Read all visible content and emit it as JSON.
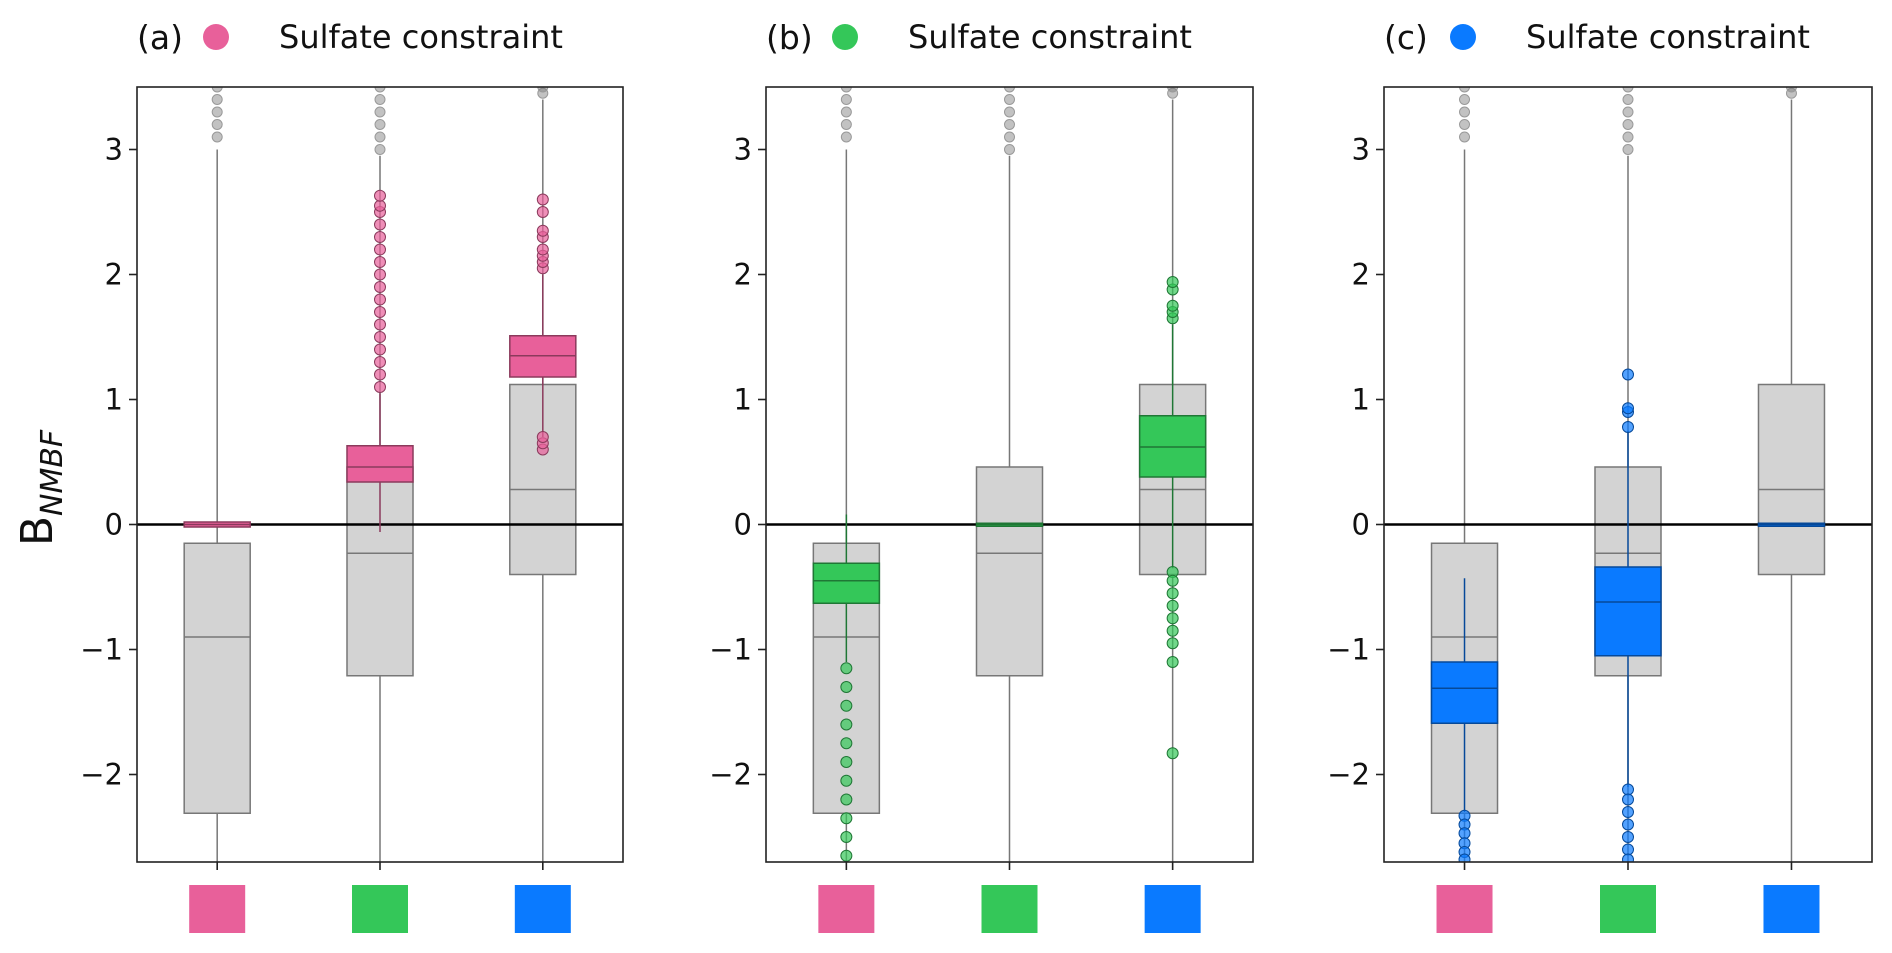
{
  "figure": {
    "ylabel_main": "B",
    "ylabel_sub": "NMBF"
  },
  "colors": {
    "pink": "#e8609a",
    "green": "#34c759",
    "blue": "#0a7aff",
    "gray_box": "#d3d3d3",
    "gray_line": "#777777",
    "zero_line": "#000000"
  },
  "chart_data": [
    {
      "type": "box",
      "panel_label": "(a)",
      "legend_text": "Sulfate constraint",
      "highlight": "pink",
      "ylim": [
        -2.7,
        3.5
      ],
      "yticks": [
        -2,
        -1,
        0,
        1,
        2,
        3
      ],
      "yticklabels": [
        "−2",
        "−1",
        "0",
        "1",
        "2",
        "3"
      ],
      "categories": [
        "pink",
        "green",
        "blue"
      ],
      "reference_boxes": [
        {
          "q1": -2.31,
          "median": -0.9,
          "q3": -0.15,
          "whisker_low": -2.7,
          "whisker_high": 3.0,
          "fliers_high": [
            3.1,
            3.2,
            3.3,
            3.4,
            3.5
          ]
        },
        {
          "q1": -1.21,
          "median": -0.23,
          "q3": 0.46,
          "whisker_low": -2.7,
          "whisker_high": 2.95,
          "fliers_high": [
            3.0,
            3.1,
            3.2,
            3.3,
            3.4,
            3.5
          ]
        },
        {
          "q1": -0.4,
          "median": 0.28,
          "q3": 1.12,
          "whisker_low": -2.7,
          "whisker_high": 3.4,
          "fliers_high": [
            3.45,
            3.5
          ]
        }
      ],
      "highlight_boxes": [
        {
          "q1": -0.02,
          "median": 0.0,
          "q3": 0.02,
          "whisker_low": -0.02,
          "whisker_high": 0.02,
          "fliers": []
        },
        {
          "q1": 0.34,
          "median": 0.46,
          "q3": 0.63,
          "whisker_low": -0.06,
          "whisker_high": 1.05,
          "fliers": [
            1.1,
            1.2,
            1.3,
            1.4,
            1.5,
            1.6,
            1.7,
            1.8,
            1.9,
            2.0,
            2.1,
            2.2,
            2.3,
            2.4,
            2.5,
            2.55,
            2.63
          ]
        },
        {
          "q1": 1.18,
          "median": 1.35,
          "q3": 1.51,
          "whisker_low": 0.7,
          "whisker_high": 2.0,
          "fliers": [
            0.6,
            0.65,
            0.7,
            2.05,
            2.1,
            2.15,
            2.2,
            2.3,
            2.35,
            2.5,
            2.6
          ]
        }
      ]
    },
    {
      "type": "box",
      "panel_label": "(b)",
      "legend_text": "Sulfate constraint",
      "highlight": "green",
      "ylim": [
        -2.7,
        3.5
      ],
      "yticks": [
        -2,
        -1,
        0,
        1,
        2,
        3
      ],
      "yticklabels": [
        "−2",
        "−1",
        "0",
        "1",
        "2",
        "3"
      ],
      "categories": [
        "pink",
        "green",
        "blue"
      ],
      "reference_boxes": [
        {
          "q1": -2.31,
          "median": -0.9,
          "q3": -0.15,
          "whisker_low": -2.7,
          "whisker_high": 3.0,
          "fliers_high": [
            3.1,
            3.2,
            3.3,
            3.4,
            3.5
          ]
        },
        {
          "q1": -1.21,
          "median": -0.23,
          "q3": 0.46,
          "whisker_low": -2.7,
          "whisker_high": 2.95,
          "fliers_high": [
            3.0,
            3.1,
            3.2,
            3.3,
            3.4,
            3.5
          ]
        },
        {
          "q1": -0.4,
          "median": 0.28,
          "q3": 1.12,
          "whisker_low": -2.7,
          "whisker_high": 3.4,
          "fliers_high": [
            3.45,
            3.5
          ]
        }
      ],
      "highlight_boxes": [
        {
          "q1": -0.63,
          "median": -0.45,
          "q3": -0.31,
          "whisker_low": -1.1,
          "whisker_high": 0.08,
          "fliers": [
            -1.15,
            -1.3,
            -1.45,
            -1.6,
            -1.75,
            -1.9,
            -2.05,
            -2.2,
            -2.35,
            -2.5,
            -2.65
          ]
        },
        {
          "q1": -0.01,
          "median": 0.0,
          "q3": 0.01,
          "whisker_low": -0.01,
          "whisker_high": 0.01,
          "fliers": []
        },
        {
          "q1": 0.38,
          "median": 0.62,
          "q3": 0.87,
          "whisker_low": -0.35,
          "whisker_high": 1.6,
          "fliers": [
            -0.38,
            -0.45,
            -0.55,
            -0.65,
            -0.75,
            -0.85,
            -0.95,
            -1.1,
            -1.83,
            1.65,
            1.7,
            1.75,
            1.88,
            1.94
          ]
        }
      ]
    },
    {
      "type": "box",
      "panel_label": "(c)",
      "legend_text": "Sulfate constraint",
      "highlight": "blue",
      "ylim": [
        -2.7,
        3.5
      ],
      "yticks": [
        -2,
        -1,
        0,
        1,
        2,
        3
      ],
      "yticklabels": [
        "−2",
        "−1",
        "0",
        "1",
        "2",
        "3"
      ],
      "categories": [
        "pink",
        "green",
        "blue"
      ],
      "reference_boxes": [
        {
          "q1": -2.31,
          "median": -0.9,
          "q3": -0.15,
          "whisker_low": -2.7,
          "whisker_high": 3.0,
          "fliers_high": [
            3.1,
            3.2,
            3.3,
            3.4,
            3.5
          ]
        },
        {
          "q1": -1.21,
          "median": -0.23,
          "q3": 0.46,
          "whisker_low": -2.7,
          "whisker_high": 2.95,
          "fliers_high": [
            3.0,
            3.1,
            3.2,
            3.3,
            3.4,
            3.5
          ]
        },
        {
          "q1": -0.4,
          "median": 0.28,
          "q3": 1.12,
          "whisker_low": -2.7,
          "whisker_high": 3.4,
          "fliers_high": [
            3.45,
            3.5
          ]
        }
      ],
      "highlight_boxes": [
        {
          "q1": -1.59,
          "median": -1.31,
          "q3": -1.1,
          "whisker_low": -2.3,
          "whisker_high": -0.43,
          "fliers": [
            -2.33,
            -2.4,
            -2.47,
            -2.55,
            -2.62,
            -2.68
          ]
        },
        {
          "q1": -1.05,
          "median": -0.62,
          "q3": -0.34,
          "whisker_low": -2.1,
          "whisker_high": 0.75,
          "fliers": [
            -2.12,
            -2.2,
            -2.3,
            -2.4,
            -2.5,
            -2.6,
            -2.68,
            0.78,
            0.9,
            0.93,
            1.2
          ]
        },
        {
          "q1": -0.01,
          "median": 0.0,
          "q3": 0.01,
          "whisker_low": -0.01,
          "whisker_high": 0.01,
          "fliers": []
        }
      ]
    }
  ]
}
